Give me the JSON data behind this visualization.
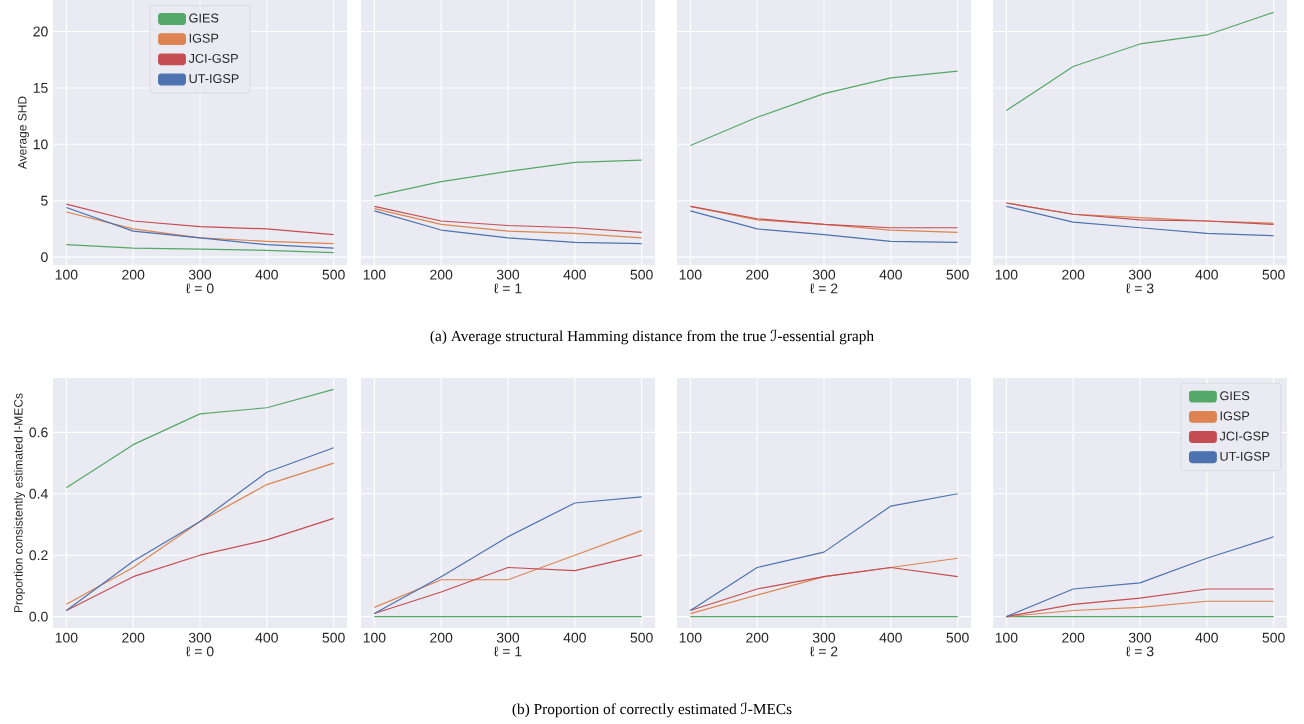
{
  "chart_data": [
    {
      "type": "line",
      "xlabel": "ℓ = 0",
      "ylabel": "Average SHD",
      "x": [
        100,
        200,
        300,
        400,
        500
      ],
      "xlim": [
        80,
        520
      ],
      "xticks": [
        100,
        200,
        300,
        400,
        500
      ],
      "ylim": [
        -0.7,
        22.8
      ],
      "yticks": [
        0,
        5,
        10,
        15,
        20
      ],
      "grid": true,
      "legend": "top",
      "annotations": [
        "(a) Average structural Hamming distance from the true ℐ-essential graph"
      ],
      "series": [
        {
          "name": "GIES",
          "color": "#55a868",
          "values": [
            1.1,
            0.8,
            0.7,
            0.6,
            0.4
          ]
        },
        {
          "name": "IGSP",
          "color": "#dd8452",
          "values": [
            4.0,
            2.5,
            1.7,
            1.4,
            1.2
          ]
        },
        {
          "name": "JCI-GSP",
          "color": "#c44e52",
          "values": [
            4.7,
            3.2,
            2.7,
            2.5,
            2.0
          ]
        },
        {
          "name": "UT-IGSP",
          "color": "#4c72b0",
          "values": [
            4.4,
            2.3,
            1.7,
            1.1,
            0.8
          ]
        }
      ]
    },
    {
      "type": "line",
      "xlabel": "ℓ = 1",
      "x": [
        100,
        200,
        300,
        400,
        500
      ],
      "xlim": [
        80,
        520
      ],
      "xticks": [
        100,
        200,
        300,
        400,
        500
      ],
      "ylim": [
        -0.7,
        22.8
      ],
      "yticks": [
        0,
        5,
        10,
        15,
        20
      ],
      "grid": true,
      "tick_labels": "x",
      "series": [
        {
          "color": "#55a868",
          "values": [
            5.4,
            6.7,
            7.6,
            8.4,
            8.6
          ]
        },
        {
          "color": "#dd8452",
          "values": [
            4.3,
            2.9,
            2.3,
            2.1,
            1.7
          ]
        },
        {
          "color": "#c44e52",
          "values": [
            4.5,
            3.2,
            2.8,
            2.6,
            2.2
          ]
        },
        {
          "color": "#4c72b0",
          "values": [
            4.1,
            2.4,
            1.7,
            1.3,
            1.2
          ]
        }
      ]
    },
    {
      "type": "line",
      "xlabel": "ℓ = 2",
      "x": [
        100,
        200,
        300,
        400,
        500
      ],
      "xlim": [
        80,
        520
      ],
      "xticks": [
        100,
        200,
        300,
        400,
        500
      ],
      "ylim": [
        -0.7,
        22.8
      ],
      "yticks": [
        0,
        5,
        10,
        15,
        20
      ],
      "grid": true,
      "tick_labels": "x",
      "series": [
        {
          "color": "#55a868",
          "values": [
            9.9,
            12.4,
            14.5,
            15.9,
            16.5
          ]
        },
        {
          "color": "#dd8452",
          "values": [
            4.5,
            3.3,
            2.9,
            2.4,
            2.2
          ]
        },
        {
          "color": "#c44e52",
          "values": [
            4.5,
            3.4,
            2.9,
            2.6,
            2.6
          ]
        },
        {
          "color": "#4c72b0",
          "values": [
            4.1,
            2.5,
            2.0,
            1.4,
            1.3
          ]
        }
      ]
    },
    {
      "type": "line",
      "xlabel": "ℓ = 3",
      "x": [
        100,
        200,
        300,
        400,
        500
      ],
      "xlim": [
        80,
        520
      ],
      "xticks": [
        100,
        200,
        300,
        400,
        500
      ],
      "ylim": [
        -0.7,
        22.8
      ],
      "yticks": [
        0,
        5,
        10,
        15,
        20
      ],
      "grid": true,
      "tick_labels": "x",
      "series": [
        {
          "color": "#55a868",
          "values": [
            13.0,
            16.9,
            18.9,
            19.7,
            21.7
          ]
        },
        {
          "color": "#dd8452",
          "values": [
            4.8,
            3.8,
            3.5,
            3.2,
            3.0
          ]
        },
        {
          "color": "#c44e52",
          "values": [
            4.8,
            3.8,
            3.3,
            3.2,
            2.9
          ]
        },
        {
          "color": "#4c72b0",
          "values": [
            4.5,
            3.1,
            2.6,
            2.1,
            1.9
          ]
        }
      ]
    },
    {
      "type": "line",
      "xlabel": "ℓ = 0",
      "ylabel": "Proportion consistently estimated I-MECs",
      "x": [
        100,
        200,
        300,
        400,
        500
      ],
      "xlim": [
        80,
        520
      ],
      "xticks": [
        100,
        200,
        300,
        400,
        500
      ],
      "ylim": [
        -0.037,
        0.777
      ],
      "yticks": [
        {
          "value": 0,
          "label": "0.0"
        },
        {
          "value": 0.2,
          "label": "0.2"
        },
        {
          "value": 0.4,
          "label": "0.4"
        },
        {
          "value": 0.6,
          "label": "0.6"
        }
      ],
      "grid": true,
      "annotations": [
        "(b) Proportion of correctly estimated ℐ-MECs"
      ],
      "series": [
        {
          "color": "#55a868",
          "values": [
            0.42,
            0.56,
            0.66,
            0.68,
            0.74
          ]
        },
        {
          "color": "#dd8452",
          "values": [
            0.04,
            0.16,
            0.31,
            0.43,
            0.5
          ]
        },
        {
          "color": "#c44e52",
          "values": [
            0.02,
            0.13,
            0.2,
            0.25,
            0.32
          ]
        },
        {
          "color": "#4c72b0",
          "values": [
            0.02,
            0.18,
            0.31,
            0.47,
            0.55
          ]
        }
      ]
    },
    {
      "type": "line",
      "xlabel": "ℓ = 1",
      "x": [
        100,
        200,
        300,
        400,
        500
      ],
      "xlim": [
        80,
        520
      ],
      "xticks": [
        100,
        200,
        300,
        400,
        500
      ],
      "ylim": [
        -0.037,
        0.777
      ],
      "yticks": [
        0,
        0.2,
        0.4,
        0.6
      ],
      "grid": true,
      "tick_labels": "x",
      "series": [
        {
          "color": "#55a868",
          "values": [
            0,
            0,
            0,
            0,
            0
          ]
        },
        {
          "color": "#dd8452",
          "values": [
            0.03,
            0.12,
            0.12,
            0.2,
            0.28
          ]
        },
        {
          "color": "#c44e52",
          "values": [
            0.01,
            0.08,
            0.16,
            0.15,
            0.2
          ]
        },
        {
          "color": "#4c72b0",
          "values": [
            0.01,
            0.13,
            0.26,
            0.37,
            0.39
          ]
        }
      ]
    },
    {
      "type": "line",
      "xlabel": "ℓ = 2",
      "x": [
        100,
        200,
        300,
        400,
        500
      ],
      "xlim": [
        80,
        520
      ],
      "xticks": [
        100,
        200,
        300,
        400,
        500
      ],
      "ylim": [
        -0.037,
        0.777
      ],
      "yticks": [
        0,
        0.2,
        0.4,
        0.6
      ],
      "grid": true,
      "tick_labels": "x",
      "series": [
        {
          "color": "#55a868",
          "values": [
            0,
            0,
            0,
            0,
            0
          ]
        },
        {
          "color": "#dd8452",
          "values": [
            0.01,
            0.07,
            0.13,
            0.16,
            0.19
          ]
        },
        {
          "color": "#c44e52",
          "values": [
            0.02,
            0.09,
            0.13,
            0.16,
            0.13
          ]
        },
        {
          "color": "#4c72b0",
          "values": [
            0.02,
            0.16,
            0.21,
            0.36,
            0.4
          ]
        }
      ]
    },
    {
      "type": "line",
      "xlabel": "ℓ = 3",
      "x": [
        100,
        200,
        300,
        400,
        500
      ],
      "xlim": [
        80,
        520
      ],
      "xticks": [
        100,
        200,
        300,
        400,
        500
      ],
      "ylim": [
        -0.037,
        0.777
      ],
      "yticks": [
        0,
        0.2,
        0.4,
        0.6
      ],
      "grid": true,
      "tick_labels": "x",
      "legend": "top right",
      "series": [
        {
          "name": "GIES",
          "color": "#55a868",
          "values": [
            0,
            0,
            0,
            0,
            0
          ]
        },
        {
          "name": "IGSP",
          "color": "#dd8452",
          "values": [
            0,
            0.02,
            0.03,
            0.05,
            0.05
          ]
        },
        {
          "name": "JCI-GSP",
          "color": "#c44e52",
          "values": [
            0,
            0.04,
            0.06,
            0.09,
            0.09
          ]
        },
        {
          "name": "UT-IGSP",
          "color": "#4c72b0",
          "values": [
            0,
            0.09,
            0.11,
            0.19,
            0.26
          ]
        }
      ]
    }
  ]
}
